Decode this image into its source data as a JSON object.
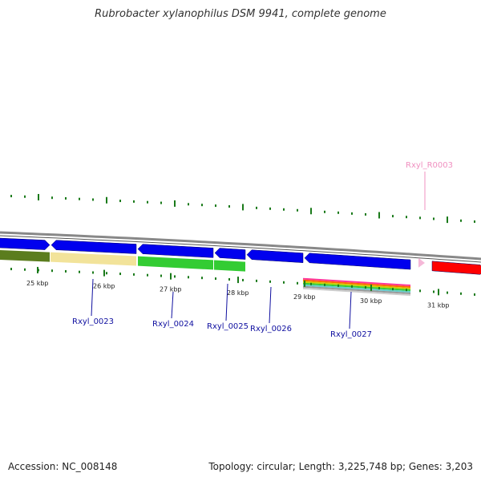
{
  "title": "Rubrobacter xylanophilus DSM 9941, complete genome",
  "footer": {
    "accession": "Accession: NC_008148",
    "summary": "Topology: circular; Length: 3,225,748 bp; Genes: 3,203"
  },
  "colors": {
    "cds": "#0000ee",
    "rna": "#ff0000",
    "rna_label": "#f090c0",
    "cds_label": "#1010a0",
    "tick": "#1a7a1a",
    "backbone": "#888888",
    "cog_olive": "#5b7d1e",
    "cog_khaki": "#f2e39a",
    "cog_green": "#33cc33"
  },
  "ticks": [
    "25 kbp",
    "26 kbp",
    "27 kbp",
    "28 kbp",
    "29 kbp",
    "30 kbp",
    "31 kbp"
  ],
  "genes": [
    {
      "label": "",
      "kind": "cds",
      "strand": "+"
    },
    {
      "label": "Rxyl_0023",
      "kind": "cds",
      "strand": "-"
    },
    {
      "label": "Rxyl_0024",
      "kind": "cds",
      "strand": "-"
    },
    {
      "label": "Rxyl_0025",
      "kind": "cds",
      "strand": "-"
    },
    {
      "label": "Rxyl_0026",
      "kind": "cds",
      "strand": "-"
    },
    {
      "label": "Rxyl_0027",
      "kind": "cds",
      "strand": "-"
    },
    {
      "label": "Rxyl_R0003",
      "kind": "rna",
      "strand": "+"
    }
  ]
}
